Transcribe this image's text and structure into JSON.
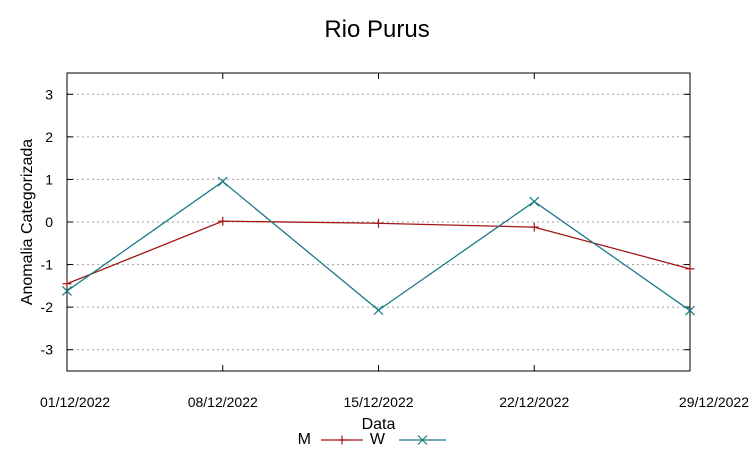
{
  "chart_data": {
    "type": "line",
    "title": "Rio Purus",
    "xlabel": "Data",
    "ylabel": "Anomalia Categorizada",
    "categories": [
      "01/12/2022",
      "08/12/2022",
      "15/12/2022",
      "22/12/2022",
      "29/12/2022"
    ],
    "ylim": [
      -3.5,
      3.5
    ],
    "yticks": [
      -3,
      -2,
      -1,
      0,
      1,
      2,
      3
    ],
    "grid": true,
    "legend_position": "bottom-center",
    "series": [
      {
        "name": "M",
        "color": "#a31515",
        "marker": "plus",
        "values": [
          -1.45,
          0.02,
          -0.03,
          -0.12,
          -1.1
        ]
      },
      {
        "name": "W",
        "color": "#1b7a87",
        "marker": "x",
        "values": [
          -1.62,
          0.95,
          -2.07,
          0.48,
          -2.08
        ]
      }
    ]
  }
}
